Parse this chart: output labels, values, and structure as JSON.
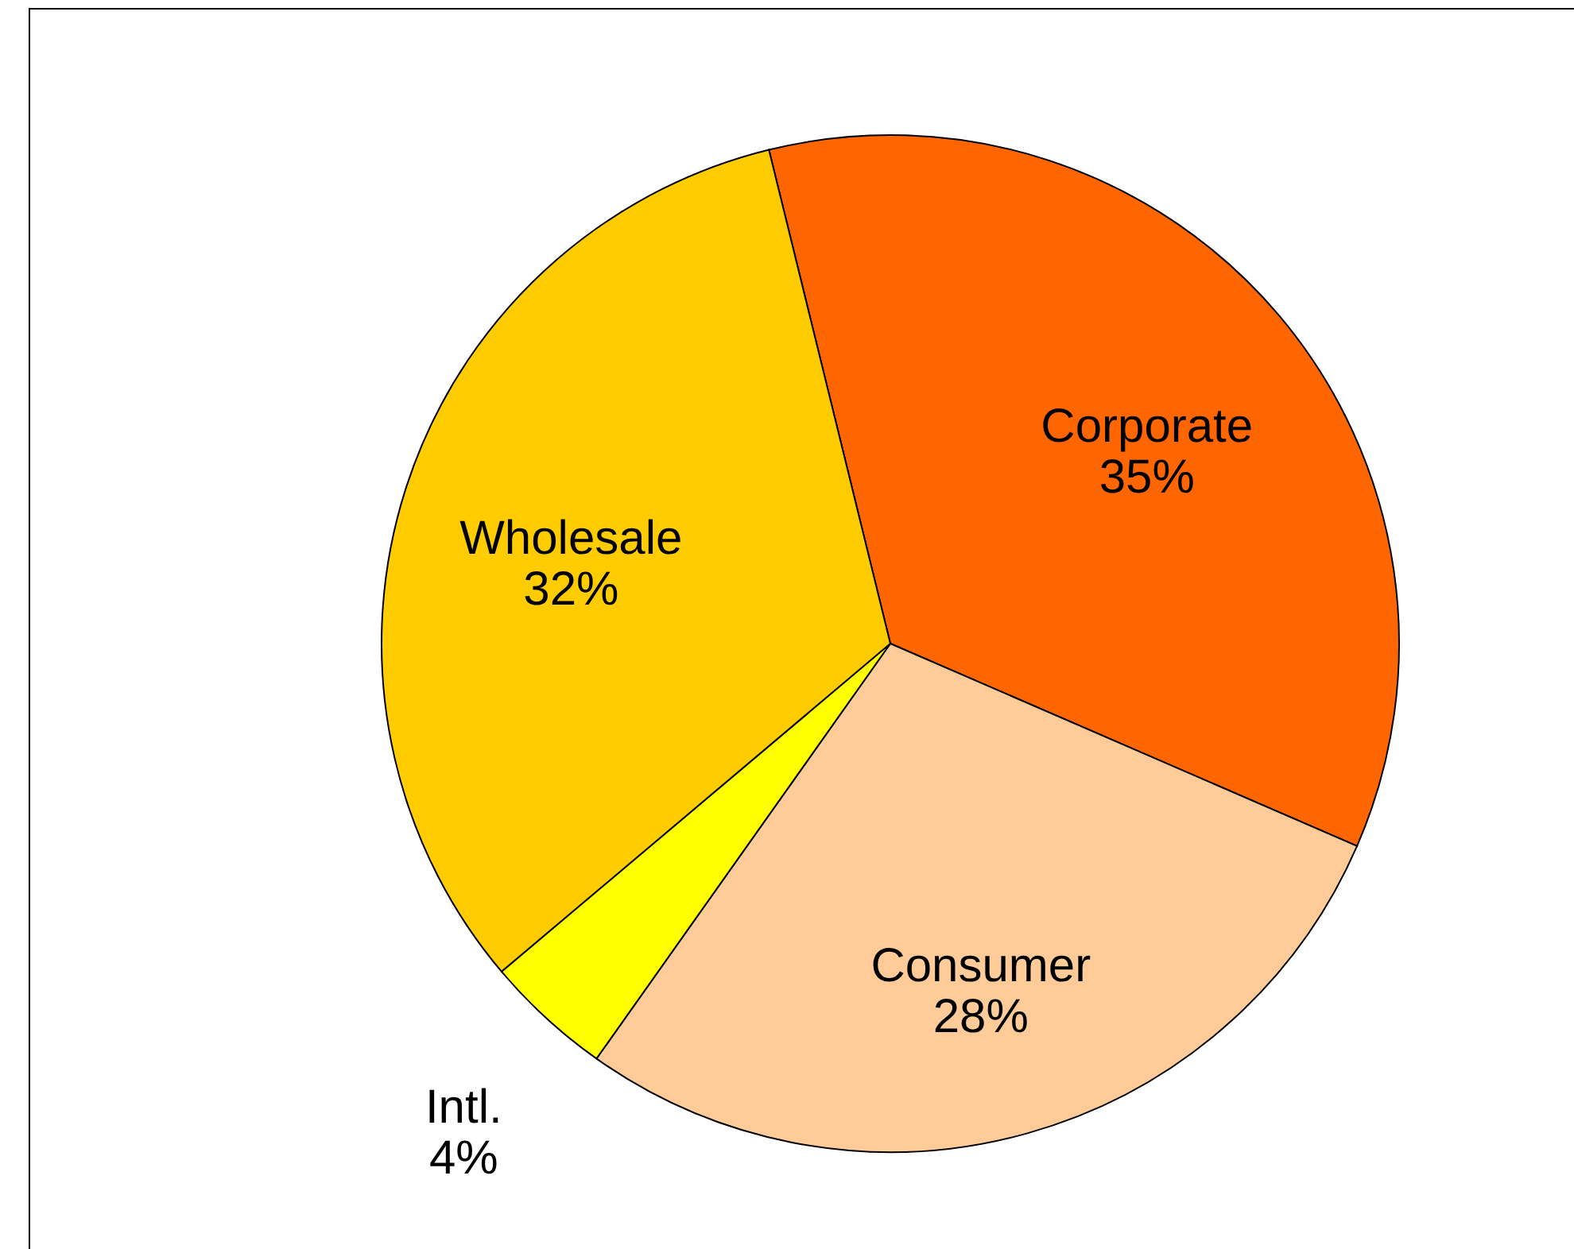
{
  "chart_data": {
    "type": "pie",
    "categories": [
      "Corporate",
      "Consumer",
      "Intl.",
      "Wholesale"
    ],
    "values": [
      35,
      28,
      4,
      32
    ],
    "colors": [
      "#ff6600",
      "#ffcc99",
      "#ffff00",
      "#ffcc00"
    ],
    "value_labels": [
      "35%",
      "28%",
      "4%",
      "32%"
    ]
  }
}
